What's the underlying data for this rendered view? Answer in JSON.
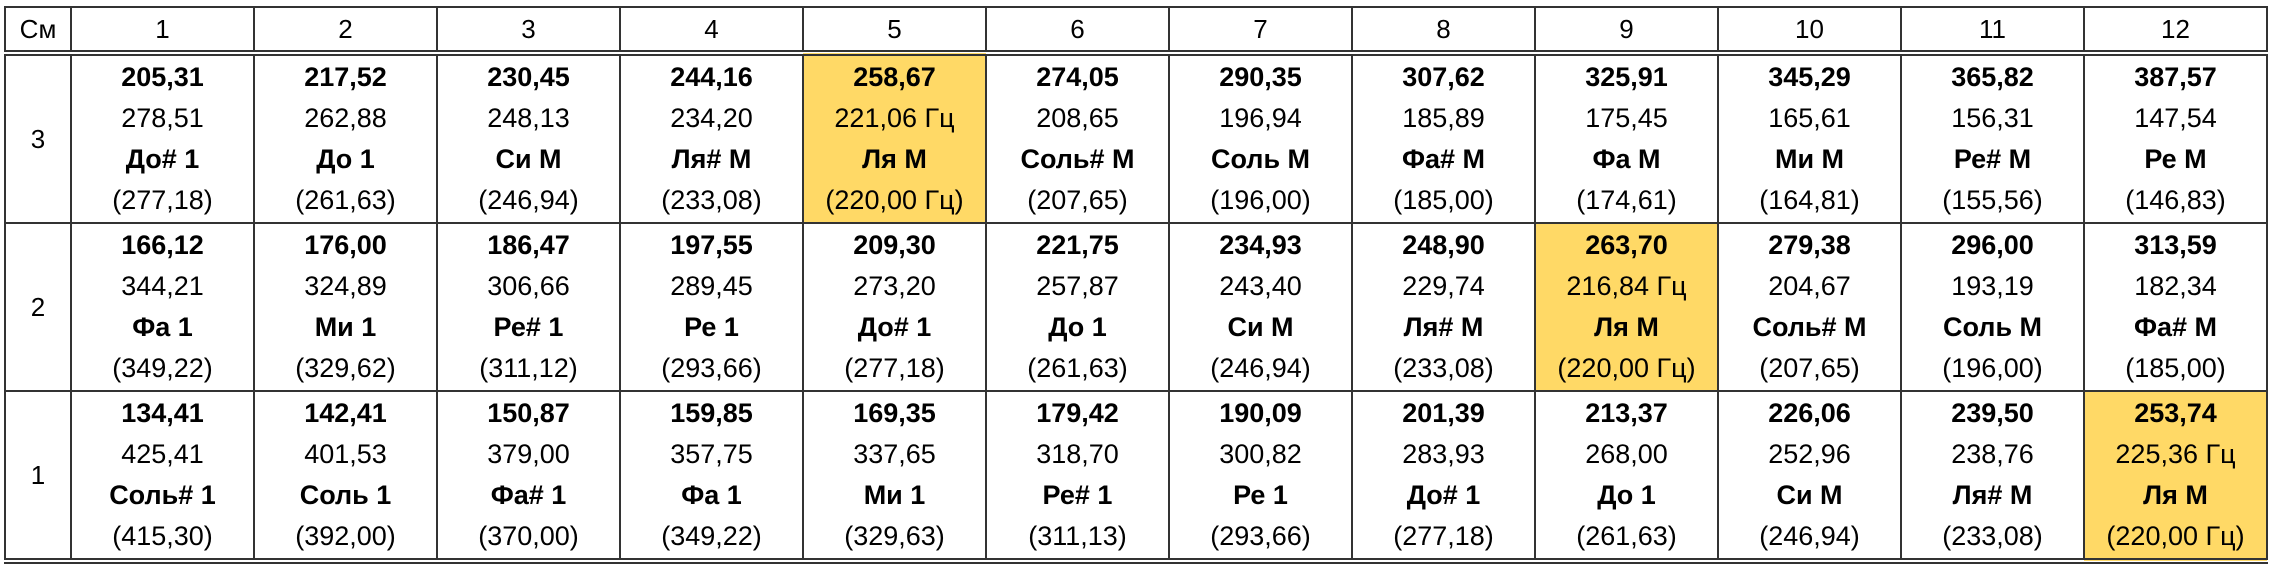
{
  "table": {
    "highlight_color": "#ffd966",
    "header": [
      "См",
      "1",
      "2",
      "3",
      "4",
      "5",
      "6",
      "7",
      "8",
      "9",
      "10",
      "11",
      "12"
    ],
    "rows": [
      {
        "label": "3",
        "highlight": 4,
        "cells": [
          [
            "205,31",
            "278,51",
            "До# 1",
            "(277,18)"
          ],
          [
            "217,52",
            "262,88",
            "До 1",
            "(261,63)"
          ],
          [
            "230,45",
            "248,13",
            "Си М",
            "(246,94)"
          ],
          [
            "244,16",
            "234,20",
            "Ля# М",
            "(233,08)"
          ],
          [
            "258,67",
            "221,06 Гц",
            "Ля М",
            "(220,00 Гц)"
          ],
          [
            "274,05",
            "208,65",
            "Соль# М",
            "(207,65)"
          ],
          [
            "290,35",
            "196,94",
            "Соль М",
            "(196,00)"
          ],
          [
            "307,62",
            "185,89",
            "Фа# М",
            "(185,00)"
          ],
          [
            "325,91",
            "175,45",
            "Фа М",
            "(174,61)"
          ],
          [
            "345,29",
            "165,61",
            "Ми М",
            "(164,81)"
          ],
          [
            "365,82",
            "156,31",
            "Ре# М",
            "(155,56)"
          ],
          [
            "387,57",
            "147,54",
            "Ре М",
            "(146,83)"
          ]
        ]
      },
      {
        "label": "2",
        "highlight": 8,
        "cells": [
          [
            "166,12",
            "344,21",
            "Фа 1",
            "(349,22)"
          ],
          [
            "176,00",
            "324,89",
            "Ми 1",
            "(329,62)"
          ],
          [
            "186,47",
            "306,66",
            "Ре# 1",
            "(311,12)"
          ],
          [
            "197,55",
            "289,45",
            "Ре 1",
            "(293,66)"
          ],
          [
            "209,30",
            "273,20",
            "До# 1",
            "(277,18)"
          ],
          [
            "221,75",
            "257,87",
            "До 1",
            "(261,63)"
          ],
          [
            "234,93",
            "243,40",
            "Си М",
            "(246,94)"
          ],
          [
            "248,90",
            "229,74",
            "Ля# М",
            "(233,08)"
          ],
          [
            "263,70",
            "216,84 Гц",
            "Ля М",
            "(220,00 Гц)"
          ],
          [
            "279,38",
            "204,67",
            "Соль# М",
            "(207,65)"
          ],
          [
            "296,00",
            "193,19",
            "Соль М",
            "(196,00)"
          ],
          [
            "313,59",
            "182,34",
            "Фа# М",
            "(185,00)"
          ]
        ]
      },
      {
        "label": "1",
        "highlight": 11,
        "cells": [
          [
            "134,41",
            "425,41",
            "Соль# 1",
            "(415,30)"
          ],
          [
            "142,41",
            "401,53",
            "Соль 1",
            "(392,00)"
          ],
          [
            "150,87",
            "379,00",
            "Фа# 1",
            "(370,00)"
          ],
          [
            "159,85",
            "357,75",
            "Фа 1",
            "(349,22)"
          ],
          [
            "169,35",
            "337,65",
            "Ми 1",
            "(329,63)"
          ],
          [
            "179,42",
            "318,70",
            "Ре# 1",
            "(311,13)"
          ],
          [
            "190,09",
            "300,82",
            "Ре 1",
            "(293,66)"
          ],
          [
            "201,39",
            "283,93",
            "До# 1",
            "(277,18)"
          ],
          [
            "213,37",
            "268,00",
            "До 1",
            "(261,63)"
          ],
          [
            "226,06",
            "252,96",
            "Си М",
            "(246,94)"
          ],
          [
            "239,50",
            "238,76",
            "Ля# М",
            "(233,08)"
          ],
          [
            "253,74",
            "225,36 Гц",
            "Ля М",
            "(220,00 Гц)"
          ]
        ]
      }
    ]
  }
}
